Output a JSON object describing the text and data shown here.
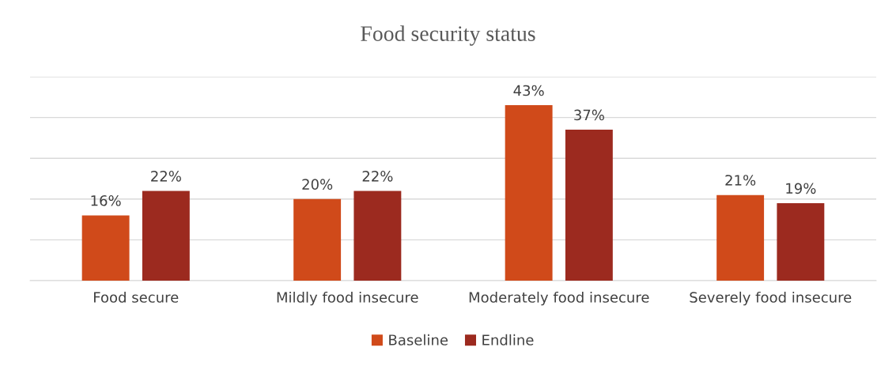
{
  "chart_data": {
    "type": "bar",
    "title": "Food security status",
    "categories": [
      "Food secure",
      "Mildly food insecure",
      "Moderately food insecure",
      "Severely food insecure"
    ],
    "series": [
      {
        "name": "Baseline",
        "color": "#d04a1a",
        "values": [
          16,
          20,
          43,
          21
        ],
        "value_labels": [
          "16%",
          "20%",
          "43%",
          "21%"
        ]
      },
      {
        "name": "Endline",
        "color": "#9c2a1f",
        "values": [
          22,
          22,
          37,
          19
        ],
        "value_labels": [
          "22%",
          "22%",
          "37%",
          "19%"
        ]
      }
    ],
    "ylim": [
      0,
      50
    ],
    "yticks": [
      {
        "value": 0,
        "label": null
      },
      {
        "value": 10,
        "label": null
      },
      {
        "value": 20,
        "label": null
      },
      {
        "value": 30,
        "label": null
      },
      {
        "value": 40,
        "label": null
      },
      {
        "value": 50,
        "label": null
      }
    ],
    "tick_labels": "x",
    "grid": "y",
    "legend": "bottom"
  }
}
